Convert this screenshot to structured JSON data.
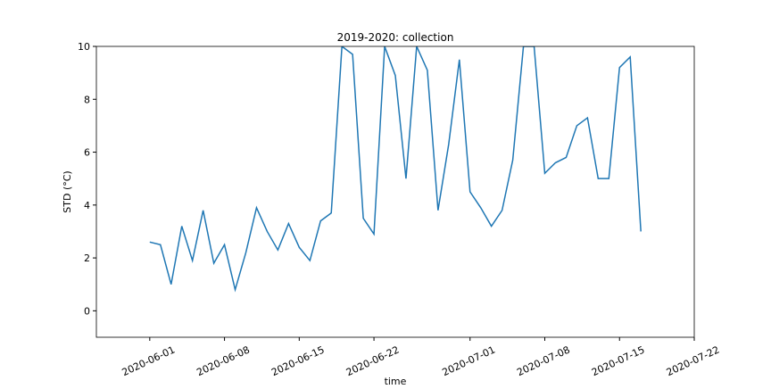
{
  "chart_data": {
    "type": "line",
    "title": "2019-2020: collection",
    "x_label": "time",
    "y_label": "STD (°C)",
    "x": [
      "2020-06-01",
      "2020-06-02",
      "2020-06-03",
      "2020-06-04",
      "2020-06-05",
      "2020-06-06",
      "2020-06-07",
      "2020-06-08",
      "2020-06-09",
      "2020-06-10",
      "2020-06-11",
      "2020-06-12",
      "2020-06-13",
      "2020-06-14",
      "2020-06-15",
      "2020-06-16",
      "2020-06-17",
      "2020-06-18",
      "2020-06-19",
      "2020-06-20",
      "2020-06-21",
      "2020-06-22",
      "2020-06-23",
      "2020-06-24",
      "2020-06-25",
      "2020-06-26",
      "2020-06-27",
      "2020-06-28",
      "2020-06-29",
      "2020-06-30",
      "2020-07-01",
      "2020-07-02",
      "2020-07-03",
      "2020-07-04",
      "2020-07-05",
      "2020-07-06",
      "2020-07-07",
      "2020-07-08",
      "2020-07-09",
      "2020-07-10",
      "2020-07-11",
      "2020-07-12",
      "2020-07-13",
      "2020-07-14",
      "2020-07-15",
      "2020-07-16",
      "2020-07-17"
    ],
    "series": [
      {
        "color": "#1f77b4",
        "values": [
          2.6,
          2.5,
          1.0,
          3.2,
          1.9,
          3.8,
          1.8,
          2.5,
          0.8,
          2.2,
          3.9,
          3.0,
          2.3,
          3.3,
          2.4,
          1.9,
          3.4,
          3.7,
          10,
          9.7,
          3.5,
          2.9,
          10,
          8.9,
          5.0,
          10,
          9.1,
          3.8,
          6.3,
          9.5,
          4.5,
          3.9,
          3.2,
          3.8,
          5.7,
          10,
          10,
          5.2,
          5.6,
          5.8,
          7.0,
          7.3,
          5.0,
          5.0,
          9.2,
          9.6,
          3.0
        ]
      }
    ],
    "xlim": [
      "2020-05-27",
      "2020-07-22"
    ],
    "xticks": [
      "2020-06-01",
      "2020-06-08",
      "2020-06-15",
      "2020-06-22",
      "2020-07-01",
      "2020-07-08",
      "2020-07-15",
      "2020-07-22"
    ],
    "ylim": [
      -1,
      10
    ],
    "yticks": [
      0,
      2,
      4,
      6,
      8,
      10
    ]
  }
}
